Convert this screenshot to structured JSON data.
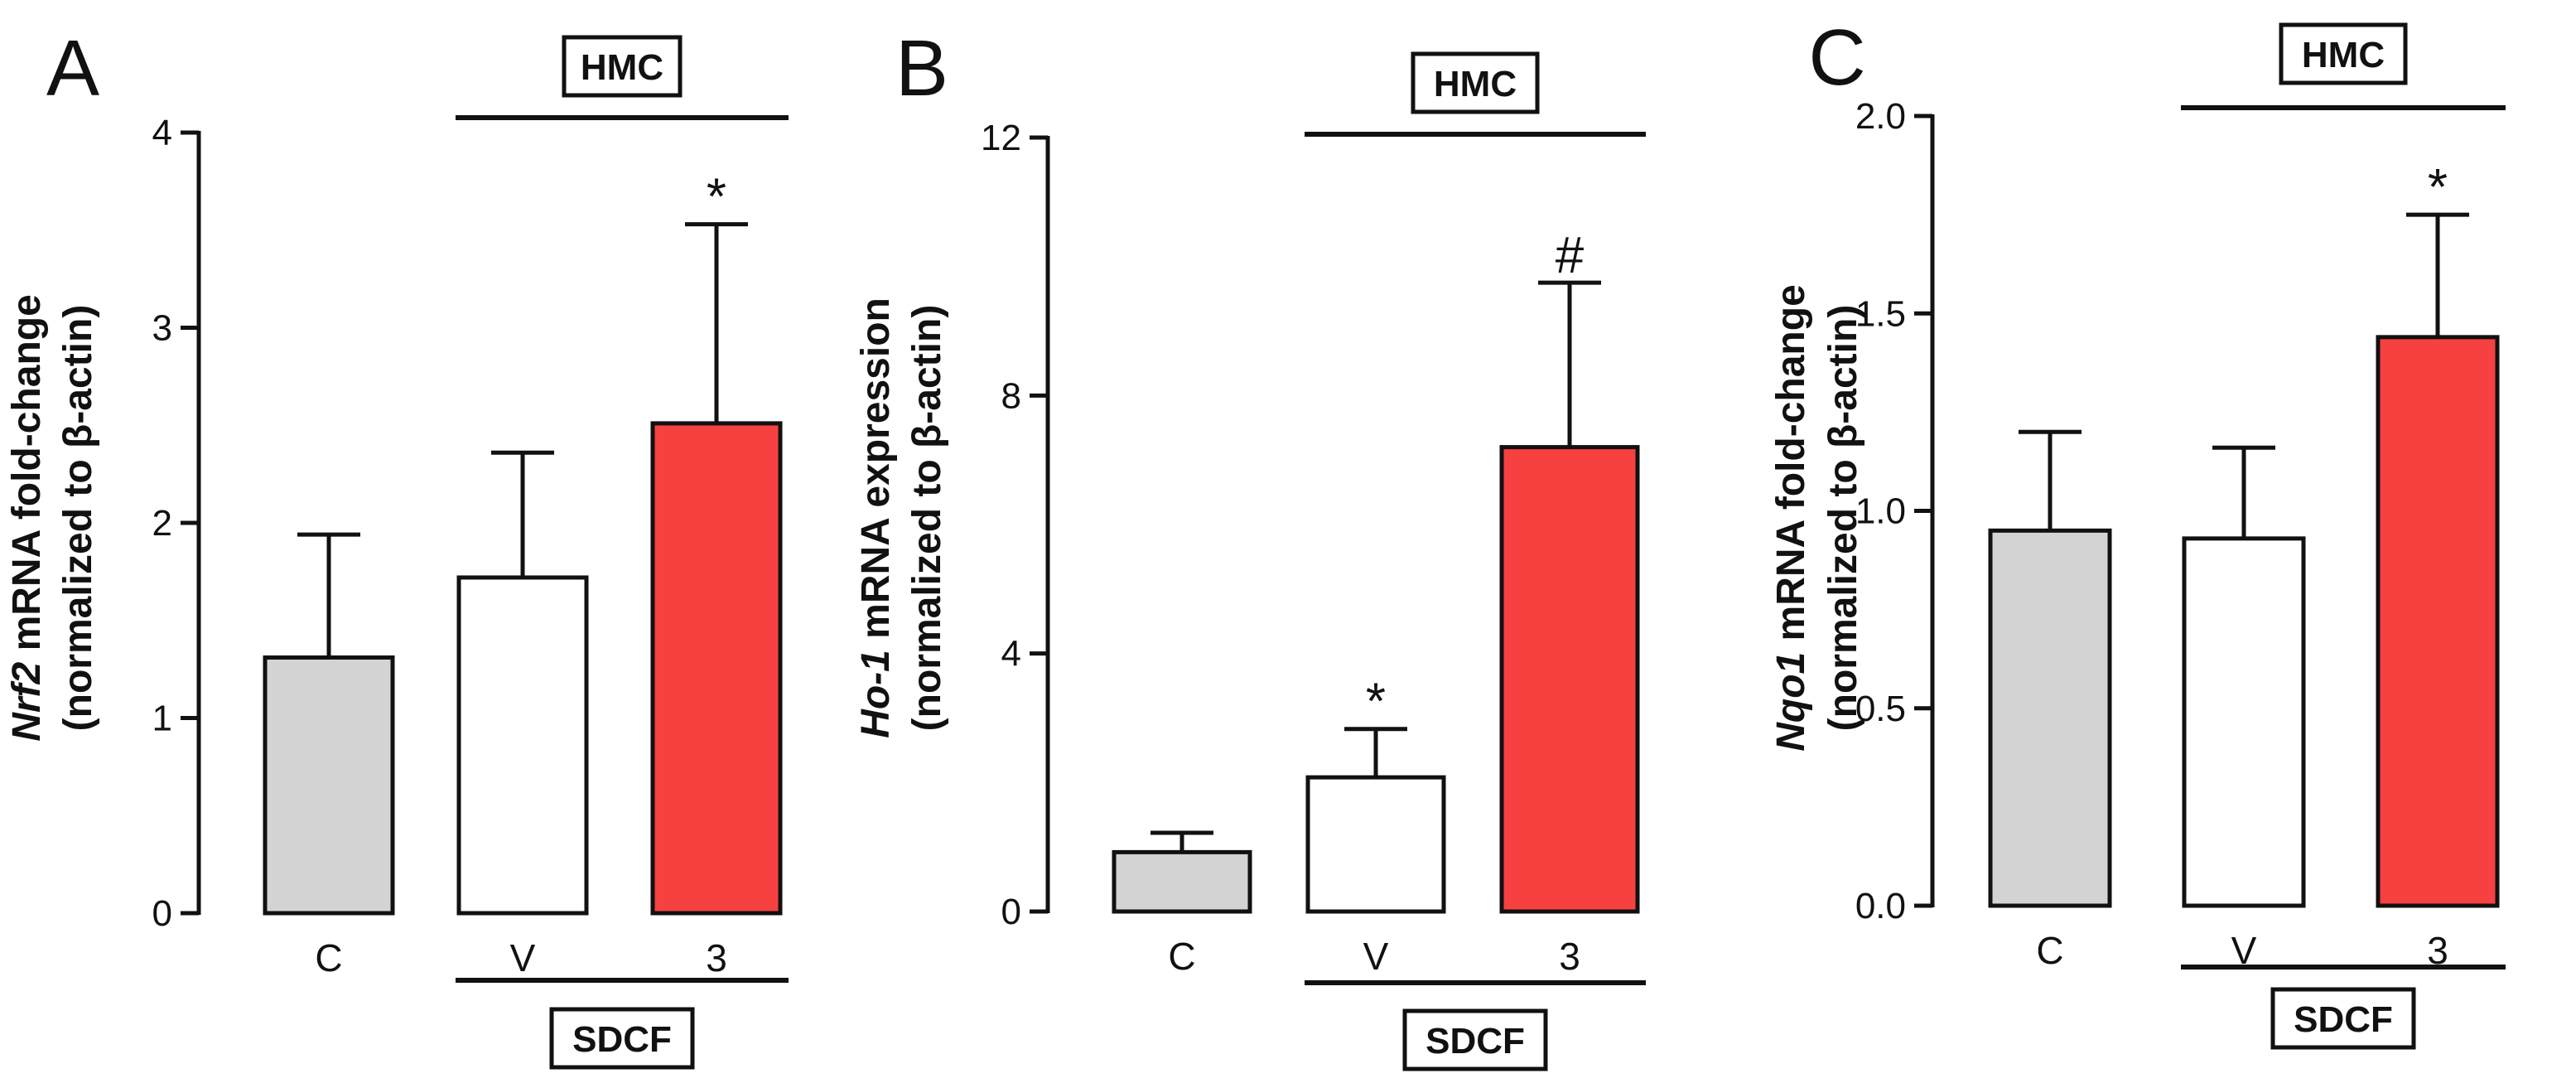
{
  "chart_data": [
    {
      "type": "bar",
      "panel": "A",
      "categories": [
        "C",
        "V",
        "3"
      ],
      "values": [
        1.31,
        1.72,
        2.51
      ],
      "errors": [
        0.63,
        0.64,
        1.02
      ],
      "significance": [
        "",
        "",
        "*"
      ],
      "colors": [
        "#d3d3d3",
        "#ffffff",
        "#f74141"
      ],
      "ylim": [
        0,
        4
      ],
      "yticks": [
        "0",
        "1",
        "2",
        "3",
        "4"
      ],
      "ylabel_italic": "Nrf2",
      "ylabel_rest": " mRNA fold-change",
      "ylabel2": "(normalized to β-actin)",
      "top_group": "HMC",
      "bottom_group": "SDCF"
    },
    {
      "type": "bar",
      "panel": "B",
      "categories": [
        "C",
        "V",
        "3"
      ],
      "values": [
        0.92,
        2.08,
        7.2
      ],
      "errors": [
        0.3,
        0.75,
        2.55
      ],
      "significance": [
        "",
        "*",
        "#"
      ],
      "colors": [
        "#d3d3d3",
        "#ffffff",
        "#f74141"
      ],
      "ylim": [
        0,
        12
      ],
      "yticks": [
        "0",
        "4",
        "8",
        "12"
      ],
      "ylabel_italic": "Ho-1",
      "ylabel_rest": " mRNA expression",
      "ylabel2": "(normalized to β-actin)",
      "top_group": "HMC",
      "bottom_group": "SDCF"
    },
    {
      "type": "bar",
      "panel": "C",
      "categories": [
        "C",
        "V",
        "3"
      ],
      "values": [
        0.95,
        0.93,
        1.44
      ],
      "errors": [
        0.25,
        0.23,
        0.31
      ],
      "significance": [
        "",
        "",
        "*"
      ],
      "colors": [
        "#d3d3d3",
        "#ffffff",
        "#f74141"
      ],
      "ylim": [
        0,
        2
      ],
      "yticks": [
        "0.0",
        "0.5",
        "1.0",
        "1.5",
        "2.0"
      ],
      "ylabel_italic": "Nqo1",
      "ylabel_rest": " mRNA fold-change",
      "ylabel2": "(normalized to β-actin)",
      "top_group": "HMC",
      "bottom_group": "SDCF"
    }
  ]
}
